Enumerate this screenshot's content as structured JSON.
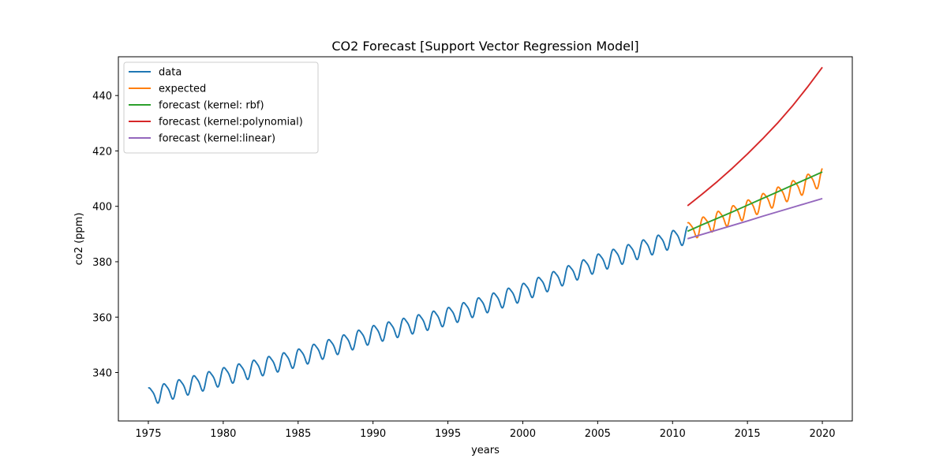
{
  "chart_data": {
    "type": "line",
    "title": "CO2 Forecast [Support Vector Regression Model]",
    "xlabel": "years",
    "ylabel": "co2 (ppm)",
    "xlim": [
      1973,
      2022
    ],
    "ylim": [
      322.5,
      454
    ],
    "xticks": [
      1975,
      1980,
      1985,
      1990,
      1995,
      2000,
      2005,
      2010,
      2015,
      2020
    ],
    "yticks": [
      340,
      360,
      380,
      400,
      420,
      440
    ],
    "grid": false,
    "legend_position": "top-left",
    "series": [
      {
        "name": "data",
        "color": "#1f77b4",
        "kind": "seasonal",
        "x_start": 1975.0,
        "x_end": 2011.0,
        "trend_points": [
          [
            1975,
            331.5
          ],
          [
            1980,
            338.8
          ],
          [
            1985,
            345.5
          ],
          [
            1990,
            354.0
          ],
          [
            1995,
            360.5
          ],
          [
            2000,
            369.2
          ],
          [
            2005,
            379.8
          ],
          [
            2011,
            390.0
          ]
        ],
        "seasonal_amplitude": 3.0
      },
      {
        "name": "expected",
        "color": "#ff7f0e",
        "kind": "seasonal",
        "x_start": 2011.0,
        "x_end": 2020.0,
        "trend_points": [
          [
            2011,
            391.0
          ],
          [
            2015,
            399.2
          ],
          [
            2020,
            410.8
          ]
        ],
        "seasonal_amplitude": 3.1
      },
      {
        "name": "forecast (kernel: rbf)",
        "color": "#2ca02c",
        "kind": "line",
        "x": [
          2011,
          2012,
          2013,
          2014,
          2015,
          2016,
          2017,
          2018,
          2019,
          2020
        ],
        "y": [
          391.0,
          393.4,
          395.7,
          398.0,
          400.4,
          402.8,
          405.2,
          407.6,
          410.0,
          412.4
        ]
      },
      {
        "name": "forecast (kernel:polynomial)",
        "color": "#d62728",
        "kind": "line",
        "x": [
          2011,
          2012,
          2013,
          2014,
          2015,
          2016,
          2017,
          2018,
          2019,
          2020
        ],
        "y": [
          400.2,
          404.5,
          409.0,
          413.8,
          418.9,
          424.3,
          430.0,
          436.2,
          443.0,
          450.2
        ]
      },
      {
        "name": "forecast (kernel:linear)",
        "color": "#9467bd",
        "kind": "line",
        "x": [
          2011,
          2012,
          2013,
          2014,
          2015,
          2016,
          2017,
          2018,
          2019,
          2020
        ],
        "y": [
          388.3,
          389.9,
          391.5,
          393.1,
          394.7,
          396.4,
          398.0,
          399.6,
          401.2,
          402.8
        ]
      }
    ]
  }
}
